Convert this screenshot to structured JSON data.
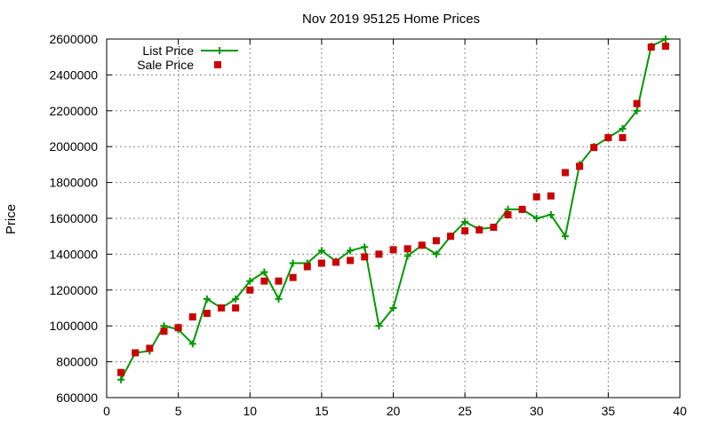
{
  "chart_data": {
    "type": "line",
    "title": "Nov 2019 95125 Home Prices",
    "xlabel": "",
    "ylabel": "Price",
    "xlim": [
      0,
      40
    ],
    "ylim": [
      600000,
      2600000
    ],
    "x_ticks": [
      0,
      5,
      10,
      15,
      20,
      25,
      30,
      35,
      40
    ],
    "y_ticks": [
      600000,
      800000,
      1000000,
      1200000,
      1400000,
      1600000,
      1800000,
      2000000,
      2200000,
      2400000,
      2600000
    ],
    "x_tick_labels": [
      "0",
      "5",
      "10",
      "15",
      "20",
      "25",
      "30",
      "35",
      "40"
    ],
    "y_tick_labels": [
      "600000",
      "800000",
      "1000000",
      "1200000",
      "1400000",
      "1600000",
      "1800000",
      "2000000",
      "2200000",
      "2400000",
      "2600000"
    ],
    "grid": true,
    "legend_position": "top-left",
    "series": [
      {
        "name": "List Price",
        "style": "line+plus",
        "color": "#009900",
        "x": [
          1,
          2,
          3,
          4,
          5,
          6,
          7,
          8,
          9,
          10,
          11,
          12,
          13,
          14,
          15,
          16,
          17,
          18,
          19,
          20,
          21,
          22,
          23,
          24,
          25,
          26,
          27,
          28,
          29,
          30,
          31,
          32,
          33,
          34,
          35,
          36,
          37,
          38,
          39
        ],
        "y": [
          700000,
          850000,
          860000,
          1000000,
          980000,
          900000,
          1150000,
          1100000,
          1150000,
          1250000,
          1300000,
          1150000,
          1350000,
          1350000,
          1420000,
          1360000,
          1420000,
          1440000,
          1000000,
          1100000,
          1390000,
          1450000,
          1400000,
          1500000,
          1580000,
          1540000,
          1550000,
          1650000,
          1650000,
          1600000,
          1620000,
          1500000,
          1900000,
          2000000,
          2050000,
          2100000,
          2200000,
          2560000,
          2600000
        ]
      },
      {
        "name": "Sale Price",
        "style": "square-points",
        "color": "#cc0000",
        "x": [
          1,
          2,
          3,
          4,
          5,
          6,
          7,
          8,
          9,
          10,
          11,
          12,
          13,
          14,
          15,
          16,
          17,
          18,
          19,
          20,
          21,
          22,
          23,
          24,
          25,
          26,
          27,
          28,
          29,
          30,
          31,
          32,
          33,
          34,
          35,
          36,
          37,
          38,
          39
        ],
        "y": [
          740000,
          850000,
          875000,
          970000,
          990000,
          1050000,
          1070000,
          1100000,
          1100000,
          1200000,
          1250000,
          1250000,
          1270000,
          1330000,
          1350000,
          1355000,
          1365000,
          1385000,
          1400000,
          1425000,
          1430000,
          1450000,
          1475000,
          1500000,
          1530000,
          1535000,
          1550000,
          1620000,
          1650000,
          1720000,
          1725000,
          1855000,
          1890000,
          1995000,
          2050000,
          2050000,
          2240000,
          2555000,
          2560000
        ]
      }
    ]
  }
}
